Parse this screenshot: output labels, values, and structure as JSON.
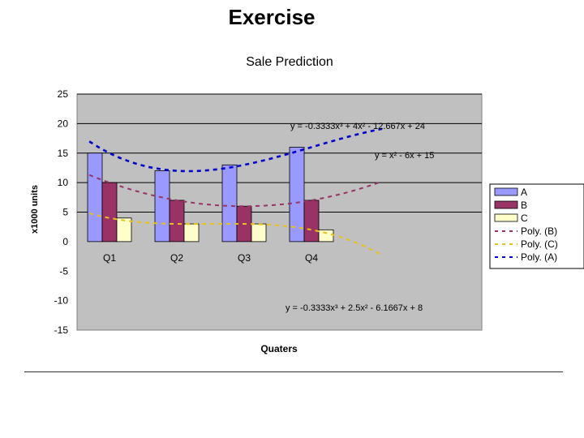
{
  "slide": {
    "title": "Exercise"
  },
  "chart_data": {
    "type": "bar",
    "title": "Sale Prediction",
    "xlabel": "Quaters",
    "ylabel": "x1000 units",
    "categories": [
      "Q1",
      "Q2",
      "Q3",
      "Q4"
    ],
    "ylim": [
      -15,
      25
    ],
    "yticks": [
      25,
      20,
      15,
      10,
      5,
      0,
      -5,
      -10,
      -15
    ],
    "series": [
      {
        "name": "A",
        "values": [
          15,
          12,
          13,
          16
        ],
        "color": "#9999ff"
      },
      {
        "name": "B",
        "values": [
          10,
          7,
          6,
          7
        ],
        "color": "#993366"
      },
      {
        "name": "C",
        "values": [
          4,
          3,
          3,
          2
        ],
        "color": "#ffffcc"
      }
    ],
    "trendlines": [
      {
        "name": "Poly. (B)",
        "of": "B",
        "color": "#993366",
        "coeffs": [
          1,
          -6,
          15
        ],
        "equation": "y = x² - 6x + 15"
      },
      {
        "name": "Poly. (C)",
        "of": "C",
        "color": "#e6c21a",
        "coeffs": [
          -0.3333,
          2.5,
          -6.1667,
          8
        ],
        "equation": "y = -0.3333x³ + 2.5x² - 6.1667x + 8"
      },
      {
        "name": "Poly. (A)",
        "of": "A",
        "color": "#0000cc",
        "coeffs": [
          -0.3333,
          4,
          -12.667,
          24
        ],
        "equation": "y = -0.3333x³ + 4x² - 12.667x + 24"
      }
    ],
    "legend": [
      "A",
      "B",
      "C",
      "Poly. (B)",
      "Poly. (C)",
      "Poly. (A)"
    ],
    "legend_position": "right",
    "grid": true
  }
}
